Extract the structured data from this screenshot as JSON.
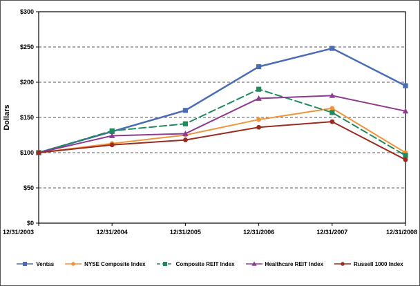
{
  "chart_data": {
    "type": "line",
    "title": "",
    "xlabel": "",
    "ylabel": "Dollars",
    "x": [
      "12/31/2003",
      "12/31/2004",
      "12/31/2005",
      "12/31/2006",
      "12/31/2007",
      "12/31/2008"
    ],
    "ylim": [
      0,
      300
    ],
    "ytick_step": 50,
    "ytick_labels": [
      "$0",
      "$50",
      "$100",
      "$150",
      "$200",
      "$250",
      "$300"
    ],
    "grid": true,
    "legend_position": "bottom",
    "series": [
      {
        "name": "Ventas",
        "color": "#4a6cb5",
        "marker": "square",
        "dash": "solid",
        "width": 2.5,
        "values": [
          100,
          130,
          160,
          222,
          248,
          195
        ]
      },
      {
        "name": "NYSE Composite Index",
        "color": "#f0943a",
        "marker": "circle",
        "dash": "solid",
        "width": 2,
        "values": [
          100,
          113,
          125,
          147,
          163,
          100
        ]
      },
      {
        "name": "Composite REIT Index",
        "color": "#1f8a5a",
        "marker": "square",
        "dash": "dashed",
        "width": 2,
        "values": [
          100,
          131,
          141,
          190,
          157,
          96
        ]
      },
      {
        "name": "Healthcare REIT Index",
        "color": "#8e3a8e",
        "marker": "triangle",
        "dash": "solid",
        "width": 2,
        "values": [
          100,
          124,
          127,
          177,
          181,
          159
        ]
      },
      {
        "name": "Russell 1000 Index",
        "color": "#9a2b20",
        "marker": "circle",
        "dash": "solid",
        "width": 2,
        "values": [
          100,
          111,
          118,
          136,
          144,
          90
        ]
      }
    ]
  }
}
